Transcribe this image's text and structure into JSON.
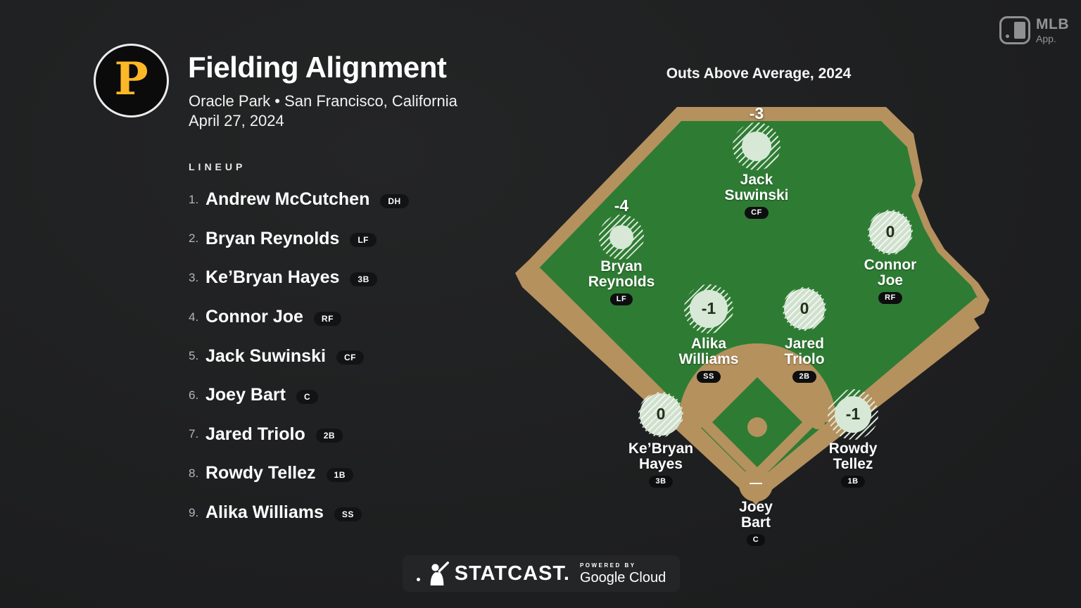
{
  "header": {
    "logo_letter": "P",
    "title": "Fielding Alignment",
    "venue_line": "Oracle Park • San Francisco, California",
    "date_line": "April 27, 2024",
    "oaa_title": "Outs Above Average, 2024",
    "mlb_app": {
      "line1": "MLB",
      "line2": "App."
    }
  },
  "lineup": {
    "label": "LINEUP",
    "players": [
      {
        "order": "1.",
        "name": "Andrew McCutchen",
        "pos": "DH"
      },
      {
        "order": "2.",
        "name": "Bryan Reynolds",
        "pos": "LF"
      },
      {
        "order": "3.",
        "name": "Ke’Bryan Hayes",
        "pos": "3B"
      },
      {
        "order": "4.",
        "name": "Connor Joe",
        "pos": "RF"
      },
      {
        "order": "5.",
        "name": "Jack Suwinski",
        "pos": "CF"
      },
      {
        "order": "6.",
        "name": "Joey Bart",
        "pos": "C"
      },
      {
        "order": "7.",
        "name": "Jared Triolo",
        "pos": "2B"
      },
      {
        "order": "8.",
        "name": "Rowdy Tellez",
        "pos": "1B"
      },
      {
        "order": "9.",
        "name": "Alika Williams",
        "pos": "SS"
      }
    ]
  },
  "field": {
    "fielders": [
      {
        "pos": "CF",
        "name": "Jack Suwinski",
        "oaa": "-3"
      },
      {
        "pos": "LF",
        "name": "Bryan Reynolds",
        "oaa": "-4"
      },
      {
        "pos": "RF",
        "name": "Connor Joe",
        "oaa": "0"
      },
      {
        "pos": "SS",
        "name": "Alika Williams",
        "oaa": "-1"
      },
      {
        "pos": "2B",
        "name": "Jared Triolo",
        "oaa": "0"
      },
      {
        "pos": "3B",
        "name": "Ke’Bryan Hayes",
        "oaa": "0"
      },
      {
        "pos": "1B",
        "name": "Rowdy Tellez",
        "oaa": "-1"
      },
      {
        "pos": "C",
        "name": "Joey Bart",
        "oaa": "—"
      }
    ]
  },
  "footer": {
    "statcast": "STATCAST.",
    "powered_by": "POWERED BY",
    "google_cloud": "Google Cloud"
  },
  "colors": {
    "grass": "#2e7c33",
    "dirt": "#b5915e",
    "marker": "#d8e8d7",
    "pirates_yellow": "#fdb827",
    "background": "#1c1d1e"
  },
  "chart_data": {
    "type": "scatter",
    "title": "Outs Above Average, 2024",
    "subtitle": "Fielding Alignment — Oracle Park • San Francisco, California — April 27, 2024",
    "legend_position": "none",
    "points": [
      {
        "player": "Jack Suwinski",
        "position": "CF",
        "oaa": -3
      },
      {
        "player": "Bryan Reynolds",
        "position": "LF",
        "oaa": -4
      },
      {
        "player": "Connor Joe",
        "position": "RF",
        "oaa": 0
      },
      {
        "player": "Alika Williams",
        "position": "SS",
        "oaa": -1
      },
      {
        "player": "Jared Triolo",
        "position": "2B",
        "oaa": 0
      },
      {
        "player": "Ke’Bryan Hayes",
        "position": "3B",
        "oaa": 0
      },
      {
        "player": "Rowdy Tellez",
        "position": "1B",
        "oaa": -1
      },
      {
        "player": "Joey Bart",
        "position": "C",
        "oaa": null
      }
    ]
  }
}
